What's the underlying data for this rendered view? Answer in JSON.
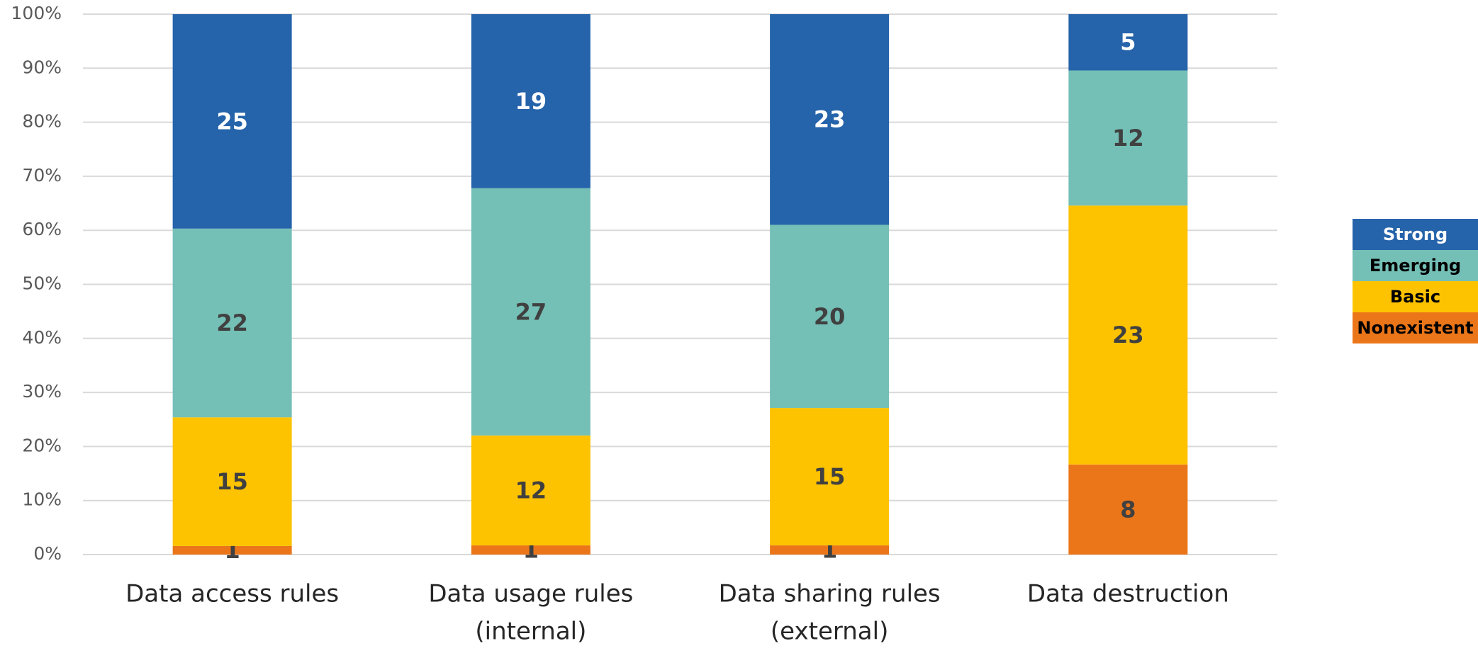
{
  "chart_data": {
    "type": "bar",
    "stacking": "percent",
    "categories": [
      [
        "Data access rules"
      ],
      [
        "Data usage rules",
        "(internal)"
      ],
      [
        "Data sharing rules",
        "(external)"
      ],
      [
        "Data destruction"
      ]
    ],
    "series": [
      {
        "name": "Nonexistent",
        "color": "#eb7619",
        "label_color": "#404040",
        "values": [
          1,
          1,
          1,
          8
        ]
      },
      {
        "name": "Basic",
        "color": "#fdc300",
        "label_color": "#404040",
        "values": [
          15,
          12,
          15,
          23
        ]
      },
      {
        "name": "Emerging",
        "color": "#74bfb6",
        "label_color": "#404040",
        "values": [
          22,
          27,
          20,
          12
        ]
      },
      {
        "name": "Strong",
        "color": "#2563aa",
        "label_color": "#ffffff",
        "values": [
          25,
          19,
          23,
          5
        ]
      }
    ],
    "ylim": [
      0,
      100
    ],
    "yticks": [
      {
        "value": 0,
        "label": "0%"
      },
      {
        "value": 10,
        "label": "10%"
      },
      {
        "value": 20,
        "label": "20%"
      },
      {
        "value": 30,
        "label": "30%"
      },
      {
        "value": 40,
        "label": "40%"
      },
      {
        "value": 50,
        "label": "50%"
      },
      {
        "value": 60,
        "label": "60%"
      },
      {
        "value": 70,
        "label": "70%"
      },
      {
        "value": 80,
        "label": "80%"
      },
      {
        "value": 90,
        "label": "90%"
      },
      {
        "value": 100,
        "label": "100%"
      }
    ],
    "grid": true,
    "legend": "right"
  }
}
